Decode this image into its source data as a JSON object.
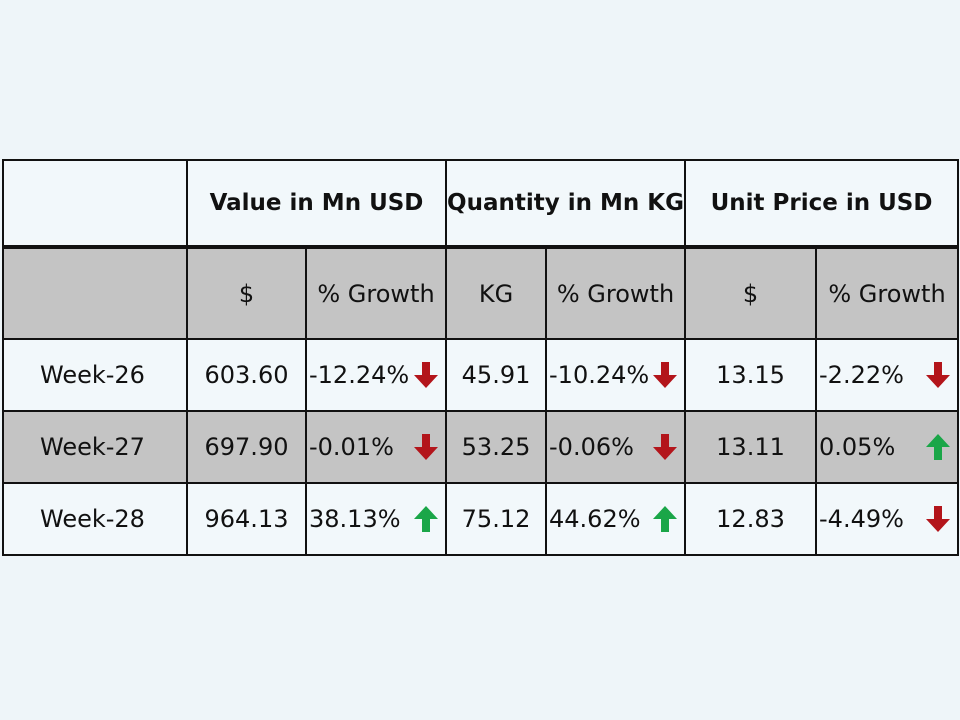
{
  "header_groups": [
    {
      "label": ""
    },
    {
      "label": "Value in Mn USD"
    },
    {
      "label": "Quantity in Mn KG"
    },
    {
      "label": "Unit Price in USD"
    }
  ],
  "sub_headers": [
    "",
    "$",
    "% Growth",
    "KG",
    "% Growth",
    "$",
    "% Growth"
  ],
  "rows": [
    {
      "week": "Week-26",
      "value": "603.60",
      "value_growth": "-12.24%",
      "value_dir": "down",
      "qty": "45.91",
      "qty_growth": "-10.24%",
      "qty_dir": "down",
      "price": "13.15",
      "price_growth": "-2.22%",
      "price_dir": "down"
    },
    {
      "week": "Week-27",
      "value": "697.90",
      "value_growth": "-0.01%",
      "value_dir": "down",
      "qty": "53.25",
      "qty_growth": "-0.06%",
      "qty_dir": "down",
      "price": "13.11",
      "price_growth": "0.05%",
      "price_dir": "up"
    },
    {
      "week": "Week-28",
      "value": "964.13",
      "value_growth": "38.13%",
      "value_dir": "up",
      "qty": "75.12",
      "qty_growth": "44.62%",
      "qty_dir": "up",
      "price": "12.83",
      "price_growth": "-4.49%",
      "price_dir": "down"
    }
  ],
  "colors": {
    "up_arrow": "#1aa648",
    "down_arrow": "#b3151b"
  },
  "icons": {
    "up": "arrow-up-icon",
    "down": "arrow-down-icon"
  }
}
